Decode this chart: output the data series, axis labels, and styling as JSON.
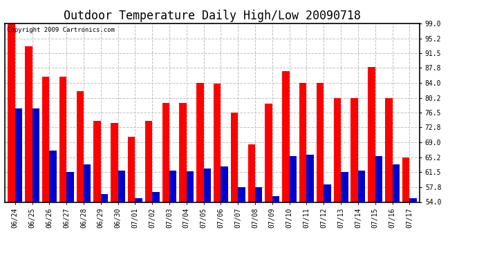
{
  "title": "Outdoor Temperature Daily High/Low 20090718",
  "copyright": "Copyright 2009 Cartronics.com",
  "dates": [
    "06/24",
    "06/25",
    "06/26",
    "06/27",
    "06/28",
    "06/29",
    "06/30",
    "07/01",
    "07/02",
    "07/03",
    "07/04",
    "07/05",
    "07/06",
    "07/07",
    "07/08",
    "07/09",
    "07/10",
    "07/11",
    "07/12",
    "07/13",
    "07/14",
    "07/15",
    "07/16",
    "07/17"
  ],
  "highs": [
    99.0,
    93.2,
    85.5,
    85.5,
    82.0,
    74.5,
    74.0,
    70.5,
    74.5,
    79.0,
    79.0,
    84.0,
    83.8,
    76.5,
    68.5,
    78.8,
    87.0,
    84.0,
    84.0,
    80.2,
    80.2,
    88.0,
    80.2,
    65.2
  ],
  "lows": [
    77.5,
    77.5,
    67.0,
    61.5,
    63.5,
    56.0,
    62.0,
    55.0,
    56.5,
    62.0,
    61.8,
    62.5,
    63.0,
    57.8,
    57.8,
    55.5,
    65.5,
    66.0,
    58.5,
    61.5,
    62.0,
    65.5,
    63.5,
    55.0
  ],
  "high_color": "#ff0000",
  "low_color": "#0000cc",
  "bg_color": "#ffffff",
  "plot_bg_color": "#ffffff",
  "grid_color": "#c0c0c0",
  "ymin": 54.0,
  "ymax": 99.0,
  "yticks": [
    54.0,
    57.8,
    61.5,
    65.2,
    69.0,
    72.8,
    76.5,
    80.2,
    84.0,
    87.8,
    91.5,
    95.2,
    99.0
  ],
  "bar_width": 0.42,
  "title_fontsize": 12,
  "tick_fontsize": 7,
  "copyright_fontsize": 6.5
}
